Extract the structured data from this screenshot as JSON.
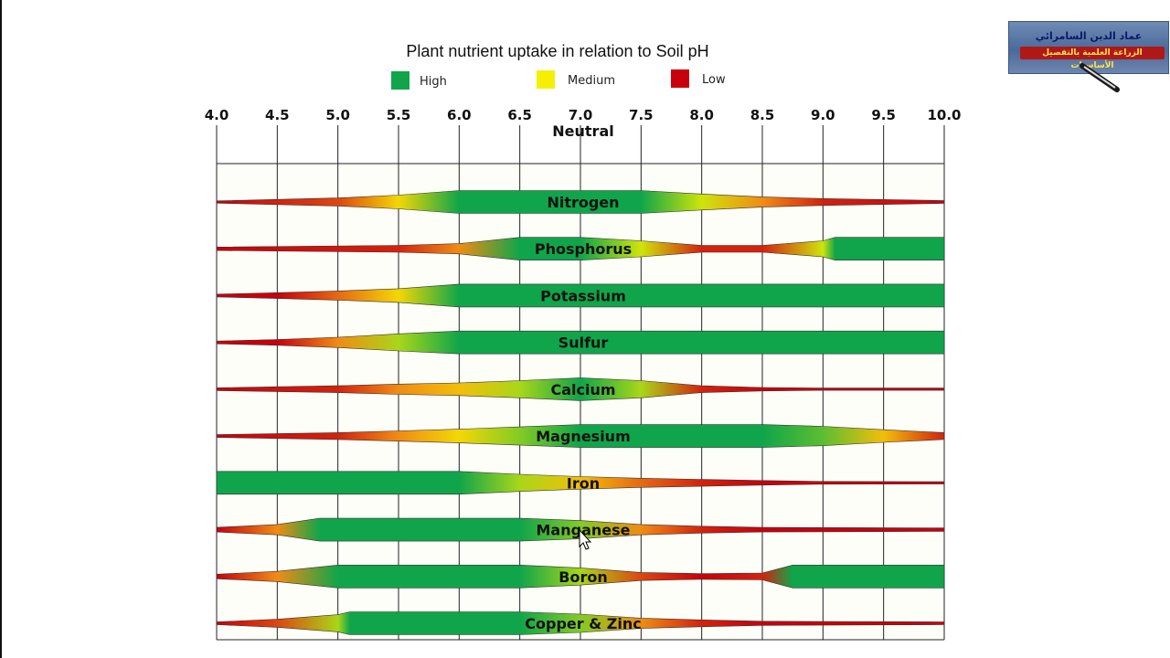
{
  "logo": {
    "line1": "عماد الدين السامرائي",
    "line2": "الزراعة العلمية بالتفصيل الأساسيات"
  },
  "legend_labels": {
    "high": "High",
    "medium": "Medium",
    "low": "Low"
  },
  "colors": {
    "high": "#10a54a",
    "medium": "#f4f000",
    "low": "#c8000c",
    "mid_orange": "#f08c14"
  },
  "chart_data": {
    "type": "band",
    "title": "Plant nutrient uptake in relation to Soil pH",
    "x_ticks": [
      "4.0",
      "4.5",
      "5.0",
      "5.5",
      "6.0",
      "6.5",
      "7.0",
      "7.5",
      "8.0",
      "8.5",
      "9.0",
      "9.5",
      "10.0"
    ],
    "x_range": [
      4.0,
      10.0
    ],
    "neutral_label": "Neutral",
    "neutral_ph": 7.0,
    "legend": [
      {
        "name": "High",
        "level": "high"
      },
      {
        "name": "Medium",
        "level": "medium"
      },
      {
        "name": "Low",
        "level": "low"
      }
    ],
    "nutrients": [
      {
        "name": "Nitrogen",
        "profile": [
          [
            4.0,
            0.1
          ],
          [
            5.0,
            0.35
          ],
          [
            5.5,
            0.6
          ],
          [
            6.0,
            1.0
          ],
          [
            7.5,
            1.0
          ],
          [
            8.0,
            0.7
          ],
          [
            8.5,
            0.45
          ],
          [
            9.0,
            0.3
          ],
          [
            10.0,
            0.12
          ]
        ]
      },
      {
        "name": "Phosphorus",
        "profile": [
          [
            4.0,
            0.15
          ],
          [
            5.5,
            0.3
          ],
          [
            6.0,
            0.45
          ],
          [
            6.5,
            1.0
          ],
          [
            7.0,
            1.0
          ],
          [
            7.5,
            0.7
          ],
          [
            8.0,
            0.3
          ],
          [
            8.5,
            0.3
          ],
          [
            9.0,
            0.7
          ],
          [
            9.1,
            1.0
          ],
          [
            10.0,
            1.0
          ]
        ]
      },
      {
        "name": "Potassium",
        "profile": [
          [
            4.0,
            0.12
          ],
          [
            4.5,
            0.25
          ],
          [
            5.0,
            0.4
          ],
          [
            5.5,
            0.6
          ],
          [
            6.0,
            1.0
          ],
          [
            10.0,
            1.0
          ]
        ]
      },
      {
        "name": "Sulfur",
        "profile": [
          [
            4.0,
            0.12
          ],
          [
            4.5,
            0.25
          ],
          [
            5.0,
            0.45
          ],
          [
            5.5,
            0.75
          ],
          [
            6.0,
            1.0
          ],
          [
            10.0,
            1.0
          ]
        ]
      },
      {
        "name": "Calcium",
        "profile": [
          [
            4.0,
            0.12
          ],
          [
            5.0,
            0.3
          ],
          [
            5.5,
            0.45
          ],
          [
            6.0,
            0.55
          ],
          [
            6.5,
            0.75
          ],
          [
            7.0,
            1.0
          ],
          [
            7.5,
            0.75
          ],
          [
            8.0,
            0.3
          ],
          [
            8.5,
            0.15
          ],
          [
            9.0,
            0.1
          ],
          [
            10.0,
            0.1
          ]
        ]
      },
      {
        "name": "Magnesium",
        "profile": [
          [
            4.0,
            0.12
          ],
          [
            5.0,
            0.3
          ],
          [
            5.5,
            0.45
          ],
          [
            6.0,
            0.6
          ],
          [
            6.5,
            0.8
          ],
          [
            7.0,
            1.0
          ],
          [
            8.5,
            1.0
          ],
          [
            9.0,
            0.85
          ],
          [
            9.5,
            0.55
          ],
          [
            10.0,
            0.3
          ]
        ]
      },
      {
        "name": "Iron",
        "profile": [
          [
            4.0,
            1.0
          ],
          [
            6.0,
            1.0
          ],
          [
            6.5,
            0.75
          ],
          [
            7.0,
            0.55
          ],
          [
            7.5,
            0.4
          ],
          [
            8.0,
            0.3
          ],
          [
            8.5,
            0.2
          ],
          [
            9.0,
            0.12
          ],
          [
            10.0,
            0.1
          ]
        ]
      },
      {
        "name": "Manganese",
        "profile": [
          [
            4.0,
            0.2
          ],
          [
            4.5,
            0.45
          ],
          [
            4.85,
            1.0
          ],
          [
            6.5,
            1.0
          ],
          [
            7.0,
            0.8
          ],
          [
            7.5,
            0.45
          ],
          [
            8.0,
            0.3
          ],
          [
            8.5,
            0.2
          ],
          [
            10.0,
            0.15
          ]
        ]
      },
      {
        "name": "Boron",
        "profile": [
          [
            4.0,
            0.2
          ],
          [
            4.5,
            0.45
          ],
          [
            5.0,
            1.0
          ],
          [
            6.5,
            1.0
          ],
          [
            7.0,
            0.75
          ],
          [
            7.5,
            0.35
          ],
          [
            8.0,
            0.25
          ],
          [
            8.5,
            0.3
          ],
          [
            8.75,
            1.0
          ],
          [
            10.0,
            1.0
          ]
        ]
      },
      {
        "name": "Copper & Zinc",
        "profile": [
          [
            4.0,
            0.12
          ],
          [
            4.5,
            0.35
          ],
          [
            5.0,
            0.75
          ],
          [
            5.1,
            1.0
          ],
          [
            6.5,
            1.0
          ],
          [
            7.0,
            0.8
          ],
          [
            7.5,
            0.45
          ],
          [
            8.0,
            0.3
          ],
          [
            8.5,
            0.18
          ],
          [
            10.0,
            0.12
          ]
        ]
      }
    ]
  }
}
